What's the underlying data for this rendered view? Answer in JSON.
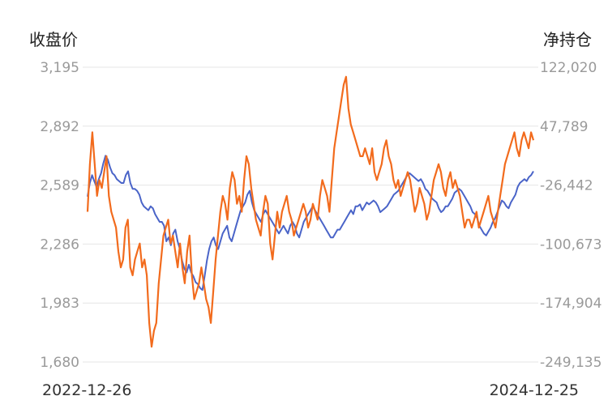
{
  "chart_data": {
    "type": "line",
    "left_axis_title": "收盘价",
    "right_axis_title": "净持仓",
    "left_ticks": [
      "3,195",
      "2,892",
      "2,589",
      "2,286",
      "1,983",
      "1,680"
    ],
    "right_ticks": [
      "122,020",
      "47,789",
      "-26,442",
      "-100,673",
      "-174,904",
      "-249,135"
    ],
    "ylim_left": [
      1680,
      3195
    ],
    "ylim_right": [
      -249135,
      122020
    ],
    "x_start_label": "2022-12-26",
    "x_end_label": "2024-12-25",
    "grid": true,
    "colors": {
      "close": "#4a64c8",
      "net_position": "#f26b1d"
    },
    "series": [
      {
        "key": "close",
        "axis": "left",
        "values": [
          2530,
          2600,
          2640,
          2610,
          2580,
          2620,
          2650,
          2700,
          2740,
          2720,
          2680,
          2650,
          2640,
          2620,
          2610,
          2600,
          2600,
          2640,
          2660,
          2600,
          2570,
          2570,
          2560,
          2540,
          2500,
          2480,
          2470,
          2460,
          2480,
          2470,
          2440,
          2420,
          2400,
          2400,
          2380,
          2300,
          2320,
          2280,
          2340,
          2360,
          2300,
          2260,
          2200,
          2160,
          2140,
          2180,
          2140,
          2120,
          2090,
          2080,
          2060,
          2050,
          2120,
          2200,
          2260,
          2300,
          2320,
          2280,
          2260,
          2300,
          2340,
          2360,
          2380,
          2320,
          2300,
          2340,
          2380,
          2420,
          2460,
          2480,
          2500,
          2540,
          2560,
          2500,
          2460,
          2440,
          2420,
          2400,
          2440,
          2460,
          2440,
          2420,
          2400,
          2380,
          2360,
          2340,
          2360,
          2380,
          2360,
          2340,
          2380,
          2400,
          2380,
          2340,
          2320,
          2360,
          2400,
          2420,
          2440,
          2460,
          2480,
          2460,
          2440,
          2420,
          2400,
          2380,
          2360,
          2340,
          2320,
          2320,
          2340,
          2360,
          2360,
          2380,
          2400,
          2420,
          2440,
          2460,
          2440,
          2480,
          2480,
          2490,
          2460,
          2480,
          2500,
          2490,
          2500,
          2510,
          2500,
          2480,
          2450,
          2460,
          2470,
          2480,
          2500,
          2520,
          2540,
          2550,
          2560,
          2580,
          2600,
          2620,
          2640,
          2650,
          2640,
          2630,
          2620,
          2610,
          2620,
          2600,
          2570,
          2560,
          2540,
          2520,
          2510,
          2500,
          2470,
          2450,
          2460,
          2480,
          2480,
          2500,
          2520,
          2550,
          2560,
          2570,
          2560,
          2540,
          2520,
          2500,
          2480,
          2450,
          2440,
          2420,
          2380,
          2360,
          2340,
          2330,
          2350,
          2370,
          2400,
          2420,
          2450,
          2480,
          2510,
          2500,
          2480,
          2470,
          2500,
          2520,
          2540,
          2580,
          2600,
          2610,
          2620,
          2610,
          2630,
          2640,
          2660
        ]
      },
      {
        "key": "net_position",
        "axis": "right",
        "values": [
          -60000,
          0,
          40000,
          0,
          -40000,
          -20000,
          -30000,
          -10000,
          10000,
          -40000,
          -60000,
          -70000,
          -80000,
          -110000,
          -130000,
          -120000,
          -80000,
          -70000,
          -130000,
          -140000,
          -120000,
          -110000,
          -100000,
          -130000,
          -120000,
          -140000,
          -200000,
          -230000,
          -210000,
          -200000,
          -150000,
          -120000,
          -90000,
          -80000,
          -70000,
          -100000,
          -90000,
          -110000,
          -130000,
          -100000,
          -130000,
          -150000,
          -110000,
          -90000,
          -140000,
          -170000,
          -160000,
          -150000,
          -130000,
          -150000,
          -170000,
          -180000,
          -200000,
          -160000,
          -120000,
          -90000,
          -60000,
          -40000,
          -50000,
          -70000,
          -30000,
          -10000,
          -20000,
          -50000,
          -40000,
          -60000,
          -20000,
          10000,
          0,
          -30000,
          -50000,
          -70000,
          -80000,
          -90000,
          -60000,
          -40000,
          -50000,
          -100000,
          -120000,
          -90000,
          -60000,
          -80000,
          -60000,
          -50000,
          -40000,
          -60000,
          -70000,
          -90000,
          -80000,
          -70000,
          -60000,
          -50000,
          -60000,
          -80000,
          -70000,
          -50000,
          -60000,
          -70000,
          -40000,
          -20000,
          -30000,
          -40000,
          -60000,
          -20000,
          20000,
          40000,
          60000,
          80000,
          100000,
          110000,
          70000,
          50000,
          40000,
          30000,
          20000,
          10000,
          10000,
          20000,
          10000,
          0,
          20000,
          -10000,
          -20000,
          -10000,
          0,
          20000,
          30000,
          10000,
          0,
          -20000,
          -30000,
          -20000,
          -40000,
          -30000,
          -20000,
          -10000,
          -20000,
          -40000,
          -60000,
          -50000,
          -30000,
          -40000,
          -50000,
          -70000,
          -60000,
          -40000,
          -20000,
          -10000,
          0,
          -10000,
          -30000,
          -40000,
          -20000,
          -10000,
          -30000,
          -20000,
          -30000,
          -40000,
          -60000,
          -80000,
          -70000,
          -70000,
          -80000,
          -70000,
          -60000,
          -80000,
          -70000,
          -60000,
          -50000,
          -40000,
          -60000,
          -70000,
          -80000,
          -60000,
          -40000,
          -20000,
          0,
          10000,
          20000,
          30000,
          40000,
          20000,
          10000,
          30000,
          40000,
          30000,
          20000,
          40000,
          30000
        ]
      }
    ]
  }
}
